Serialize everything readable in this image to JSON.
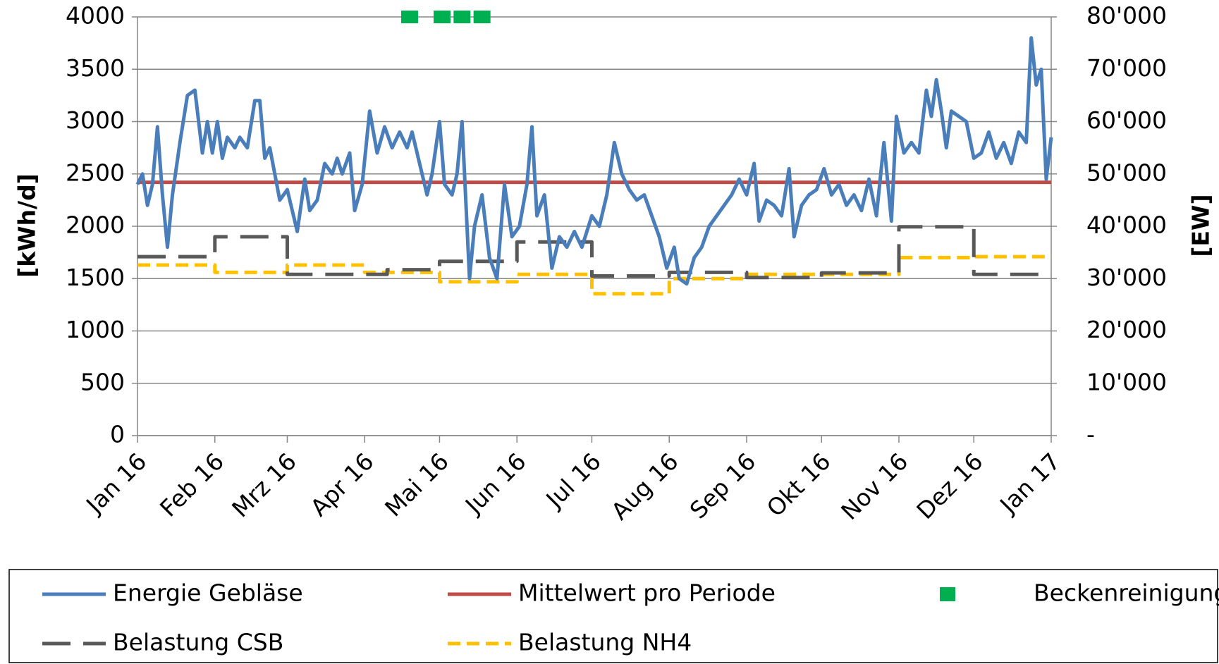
{
  "chart_data": {
    "type": "line",
    "ylabel": "[kWh/d]",
    "y2label": "[EW]",
    "xlim": [
      0,
      366
    ],
    "xticks": [
      {
        "value": 0,
        "label": "Jan 16"
      },
      {
        "value": 31,
        "label": "Feb 16"
      },
      {
        "value": 60,
        "label": "Mrz 16"
      },
      {
        "value": 91,
        "label": "Apr 16"
      },
      {
        "value": 121,
        "label": "Mai 16"
      },
      {
        "value": 152,
        "label": "Jun 16"
      },
      {
        "value": 182,
        "label": "Jul 16"
      },
      {
        "value": 213,
        "label": "Aug 16"
      },
      {
        "value": 244,
        "label": "Sep 16"
      },
      {
        "value": 274,
        "label": "Okt 16"
      },
      {
        "value": 305,
        "label": "Nov 16"
      },
      {
        "value": 335,
        "label": "Dez 16"
      },
      {
        "value": 366,
        "label": "Jan 17"
      }
    ],
    "ylim": [
      0,
      4000
    ],
    "yticks": [
      0,
      500,
      1000,
      1500,
      2000,
      2500,
      3000,
      3500,
      4000
    ],
    "y2lim": [
      0,
      80000
    ],
    "y2ticks": [
      {
        "value": 0,
        "label": "-"
      },
      {
        "value": 10000,
        "label": "10'000"
      },
      {
        "value": 20000,
        "label": "20'000"
      },
      {
        "value": 30000,
        "label": "30'000"
      },
      {
        "value": 40000,
        "label": "40'000"
      },
      {
        "value": 50000,
        "label": "50'000"
      },
      {
        "value": 60000,
        "label": "60'000"
      },
      {
        "value": 70000,
        "label": "70'000"
      },
      {
        "value": 80000,
        "label": "80'000"
      }
    ],
    "grid": true,
    "legend": "bottom",
    "series": [
      {
        "name": "Energie Gebläse",
        "color": "#4a7ebb",
        "line_style": "solid",
        "x": [
          0,
          2,
          4,
          6,
          8,
          10,
          12,
          14,
          17,
          20,
          23,
          26,
          28,
          30,
          32,
          34,
          36,
          39,
          41,
          44,
          47,
          49,
          51,
          53,
          55,
          57,
          60,
          62,
          64,
          67,
          69,
          72,
          75,
          78,
          80,
          82,
          85,
          87,
          90,
          93,
          96,
          99,
          102,
          105,
          108,
          110,
          113,
          116,
          118,
          121,
          123,
          126,
          128,
          130,
          133,
          135,
          138,
          141,
          144,
          147,
          150,
          153,
          156,
          158,
          160,
          163,
          166,
          169,
          172,
          175,
          178,
          182,
          185,
          188,
          191,
          194,
          197,
          200,
          203,
          206,
          209,
          212,
          215,
          217,
          220,
          223,
          226,
          229,
          232,
          235,
          238,
          241,
          244,
          247,
          249,
          252,
          255,
          258,
          261,
          263,
          266,
          269,
          272,
          275,
          278,
          281,
          284,
          287,
          290,
          293,
          296,
          299,
          302,
          304,
          307,
          310,
          313,
          316,
          318,
          320,
          322,
          324,
          326,
          329,
          332,
          335,
          338,
          341,
          344,
          347,
          350,
          353,
          356,
          358,
          360,
          362,
          364,
          366
        ],
        "values": [
          2400,
          2500,
          2200,
          2400,
          2950,
          2300,
          1800,
          2300,
          2800,
          3250,
          3300,
          2700,
          3000,
          2700,
          3000,
          2650,
          2850,
          2750,
          2850,
          2750,
          3200,
          3200,
          2650,
          2750,
          2500,
          2250,
          2350,
          2150,
          1950,
          2450,
          2150,
          2250,
          2600,
          2500,
          2650,
          2500,
          2700,
          2150,
          2400,
          3100,
          2700,
          2950,
          2750,
          2900,
          2750,
          2900,
          2600,
          2300,
          2500,
          3000,
          2400,
          2300,
          2500,
          3000,
          1500,
          2000,
          2300,
          1700,
          1500,
          2400,
          1900,
          2000,
          2400,
          2950,
          2100,
          2300,
          1600,
          1900,
          1800,
          1950,
          1800,
          2100,
          2000,
          2300,
          2800,
          2500,
          2350,
          2250,
          2300,
          2100,
          1900,
          1600,
          1800,
          1500,
          1450,
          1700,
          1800,
          2000,
          2100,
          2200,
          2300,
          2450,
          2300,
          2600,
          2050,
          2250,
          2200,
          2100,
          2550,
          1900,
          2200,
          2300,
          2350,
          2550,
          2300,
          2400,
          2200,
          2300,
          2150,
          2450,
          2100,
          2800,
          2050,
          3050,
          2700,
          2800,
          2700,
          3300,
          3050,
          3400,
          3100,
          2750,
          3100,
          3050,
          3000,
          2650,
          2700,
          2900,
          2650,
          2800,
          2600,
          2900,
          2800,
          3800,
          3350,
          3500,
          2450,
          2850
        ]
      },
      {
        "name": "Mittelwert pro Periode",
        "color": "#be4b48",
        "line_style": "solid",
        "x": [
          0,
          366
        ],
        "values": [
          2420,
          2420
        ]
      },
      {
        "name": "Beckenreinigung",
        "color": "#00b050",
        "line_style": "none",
        "marker": "square",
        "x": [
          109,
          122,
          130,
          138
        ],
        "values": [
          4000,
          4000,
          4000,
          4000
        ]
      },
      {
        "name": "Belastung CSB",
        "color": "#595959",
        "line_style": "longdash",
        "axis": "y2",
        "x": [
          0,
          31,
          31,
          60,
          60,
          100,
          100,
          121,
          121,
          152,
          152,
          182,
          182,
          213,
          213,
          244,
          244,
          274,
          274,
          305,
          305,
          335,
          335,
          366
        ],
        "values": [
          34200,
          34200,
          38000,
          38000,
          30800,
          30800,
          31700,
          31700,
          33300,
          33300,
          37000,
          37000,
          30500,
          30500,
          31200,
          31200,
          30200,
          30200,
          31100,
          31100,
          39900,
          39900,
          30800,
          30800
        ]
      },
      {
        "name": "Belastung NH4",
        "color": "#ffc000",
        "line_style": "dashed",
        "axis": "y2",
        "x": [
          0,
          31,
          31,
          60,
          60,
          91,
          91,
          121,
          121,
          152,
          152,
          182,
          182,
          213,
          213,
          244,
          244,
          274,
          274,
          305,
          305,
          335,
          335,
          366
        ],
        "values": [
          32600,
          32600,
          31200,
          31200,
          32600,
          32600,
          31200,
          31200,
          29400,
          29400,
          30800,
          30800,
          27100,
          27100,
          30000,
          30000,
          30800,
          30800,
          30800,
          30800,
          34000,
          34000,
          34200,
          34200
        ]
      }
    ]
  }
}
